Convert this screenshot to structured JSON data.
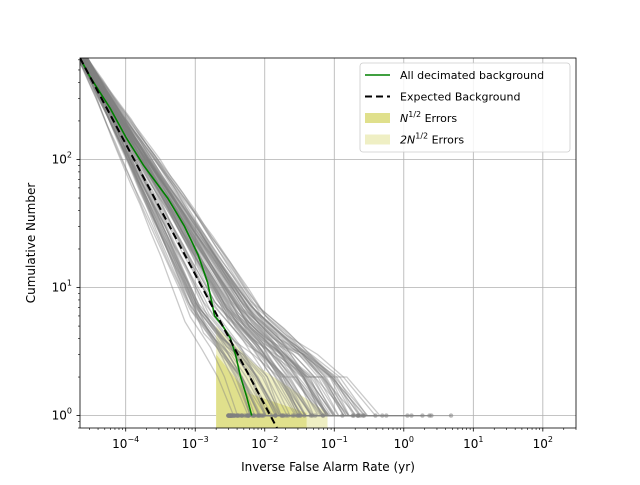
{
  "chart_data": {
    "type": "line",
    "xscale": "log",
    "yscale": "log",
    "xlabel": "Inverse False Alarm Rate (yr)",
    "ylabel": "Cumulative Number",
    "xlim": [
      2.2e-05,
      300
    ],
    "ylim": [
      0.8,
      620
    ],
    "grid": true,
    "legend_position": "top-right",
    "x_ticks": [
      {
        "value": 0.0001,
        "base": "10",
        "exp": "−4"
      },
      {
        "value": 0.001,
        "base": "10",
        "exp": "−3"
      },
      {
        "value": 0.01,
        "base": "10",
        "exp": "−2"
      },
      {
        "value": 0.1,
        "base": "10",
        "exp": "−1"
      },
      {
        "value": 1,
        "base": "10",
        "exp": "0"
      },
      {
        "value": 10,
        "base": "10",
        "exp": "1"
      },
      {
        "value": 100,
        "base": "10",
        "exp": "2"
      }
    ],
    "y_ticks": [
      {
        "value": 1,
        "base": "10",
        "exp": "0"
      },
      {
        "value": 10,
        "base": "10",
        "exp": "1"
      },
      {
        "value": 100,
        "base": "10",
        "exp": "2"
      }
    ],
    "legend": [
      {
        "label": "All decimated background",
        "kind": "line",
        "color": "#008000"
      },
      {
        "label": "Expected Background",
        "kind": "dashed",
        "color": "#000000"
      },
      {
        "label_base": "N",
        "label_sup": "1/2",
        "label_rest": " Errors",
        "kind": "patch",
        "color": "#e0e08c"
      },
      {
        "label_base": "2N",
        "label_sup": "1/2",
        "label_rest": " Errors",
        "kind": "patch",
        "color": "#efefc4"
      }
    ],
    "series": [
      {
        "name": "All decimated background",
        "color": "#008000",
        "x": [
          2.2e-05,
          3e-05,
          6e-05,
          0.0001,
          0.00018,
          0.0004,
          0.0007,
          0.0011,
          0.0015,
          0.0017,
          0.0019,
          0.0025,
          0.0032,
          0.0038,
          0.0045,
          0.0055,
          0.0065
        ],
        "y": [
          620,
          450,
          250,
          150,
          90,
          50,
          30,
          18,
          11,
          8,
          6,
          5,
          4,
          3,
          2,
          1.4,
          1
        ]
      },
      {
        "name": "Expected Background",
        "color": "#000000",
        "dashed": true,
        "x": [
          2.2e-05,
          0.015
        ],
        "y": [
          620,
          0.8
        ]
      }
    ],
    "bands": [
      {
        "name": "2N^1/2 Errors",
        "color": "#efefc4",
        "x_min": 0.002,
        "x_max": 0.08,
        "y_max": 5,
        "y_min": 0.8
      },
      {
        "name": "N^1/2 Errors",
        "color": "#e0e08c",
        "x_min": 0.002,
        "x_max": 0.04,
        "y_max": 3,
        "y_min": 0.8
      }
    ],
    "background_trials": {
      "color": "#808080",
      "count": 90,
      "y_start": 620,
      "note_endpoint_range_x": [
        0.003,
        10
      ]
    }
  }
}
